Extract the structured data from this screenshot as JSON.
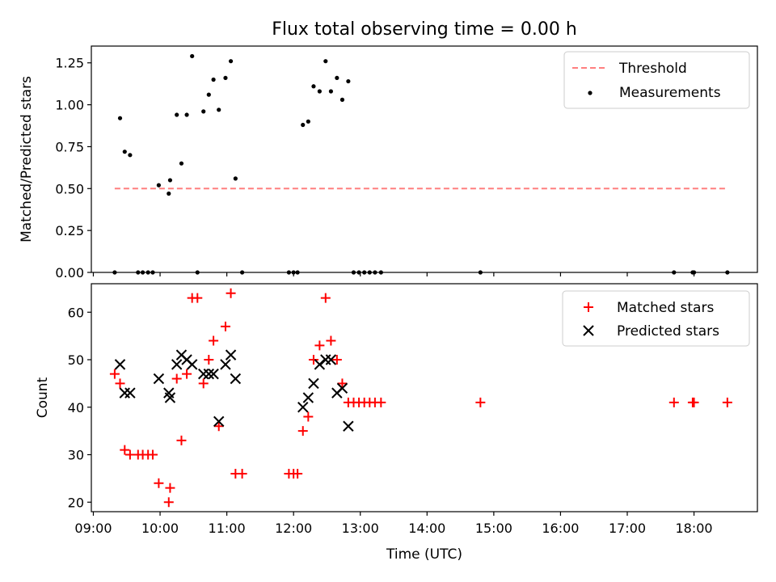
{
  "figure": {
    "title": "Flux total observing time = 0.00 h",
    "xlabel": "Time (UTC)",
    "x_ticks": [
      "09:00",
      "10:00",
      "11:00",
      "12:00",
      "13:00",
      "14:00",
      "15:00",
      "16:00",
      "17:00",
      "18:00"
    ]
  },
  "chart_data": [
    {
      "type": "scatter",
      "title": "Flux total observing time = 0.00 h",
      "ylabel": "Matched/Predicted stars",
      "xlim": [
        8.97,
        18.95
      ],
      "ylim": [
        0,
        1.35
      ],
      "y_ticks": [
        "0.00",
        "0.25",
        "0.50",
        "0.75",
        "1.00",
        "1.25"
      ],
      "grid": false,
      "legend_position": "top-right",
      "series": [
        {
          "name": "Threshold",
          "kind": "line",
          "style": "dashed",
          "color": "#ff7f7f",
          "x": [
            9.32,
            18.5
          ],
          "y": [
            0.5,
            0.5
          ]
        },
        {
          "name": "Measurements",
          "kind": "scatter",
          "marker": "dot",
          "color": "#000000",
          "x": [
            9.32,
            9.4,
            9.47,
            9.55,
            9.67,
            9.74,
            9.82,
            9.89,
            9.98,
            10.13,
            10.15,
            10.25,
            10.32,
            10.4,
            10.48,
            10.56,
            10.65,
            10.73,
            10.8,
            10.88,
            10.98,
            11.06,
            11.13,
            11.23,
            11.93,
            12.0,
            12.06,
            12.14,
            12.22,
            12.3,
            12.39,
            12.48,
            12.56,
            12.65,
            12.73,
            12.82,
            12.9,
            12.98,
            13.06,
            13.14,
            13.22,
            13.31,
            14.8,
            17.7,
            17.98,
            18.0,
            18.5
          ],
          "y": [
            0,
            0.92,
            0.72,
            0.7,
            0,
            0,
            0,
            0,
            0.52,
            0.47,
            0.55,
            0.94,
            0.65,
            0.94,
            1.29,
            0,
            0.96,
            1.06,
            1.15,
            0.97,
            1.16,
            1.26,
            0.56,
            0,
            0,
            0,
            0,
            0.88,
            0.9,
            1.11,
            1.08,
            1.26,
            1.08,
            1.16,
            1.03,
            1.14,
            0,
            0,
            0,
            0,
            0,
            0,
            0,
            0,
            0,
            0,
            0
          ]
        }
      ]
    },
    {
      "type": "scatter",
      "ylabel": "Count",
      "xlabel": "Time (UTC)",
      "xlim": [
        8.97,
        18.95
      ],
      "ylim": [
        18,
        66
      ],
      "y_ticks": [
        "20",
        "30",
        "40",
        "50",
        "60"
      ],
      "grid": false,
      "legend_position": "top-right",
      "series": [
        {
          "name": "Matched stars",
          "kind": "scatter",
          "marker": "plus",
          "color": "#ff0000",
          "x": [
            9.32,
            9.4,
            9.47,
            9.55,
            9.67,
            9.74,
            9.82,
            9.89,
            9.98,
            10.13,
            10.15,
            10.25,
            10.32,
            10.4,
            10.48,
            10.56,
            10.65,
            10.73,
            10.8,
            10.88,
            10.98,
            11.06,
            11.13,
            11.23,
            11.93,
            12.0,
            12.06,
            12.14,
            12.22,
            12.3,
            12.39,
            12.48,
            12.56,
            12.65,
            12.73,
            12.82,
            12.9,
            12.98,
            13.06,
            13.14,
            13.22,
            13.31,
            14.8,
            17.7,
            17.98,
            18.0,
            18.5
          ],
          "y": [
            47,
            45,
            31,
            30,
            30,
            30,
            30,
            30,
            24,
            20,
            23,
            46,
            33,
            47,
            63,
            63,
            45,
            50,
            54,
            36,
            57,
            64,
            26,
            26,
            26,
            26,
            26,
            35,
            38,
            50,
            53,
            63,
            54,
            50,
            45,
            41,
            41,
            41,
            41,
            41,
            41,
            41,
            41,
            41,
            41,
            41,
            41
          ]
        },
        {
          "name": "Predicted stars",
          "kind": "scatter",
          "marker": "x",
          "color": "#000000",
          "x": [
            9.4,
            9.47,
            9.55,
            9.98,
            10.13,
            10.15,
            10.25,
            10.32,
            10.4,
            10.48,
            10.65,
            10.73,
            10.8,
            10.88,
            10.98,
            11.06,
            11.13,
            12.14,
            12.22,
            12.3,
            12.39,
            12.48,
            12.56,
            12.65,
            12.73,
            12.82
          ],
          "y": [
            49,
            43,
            43,
            46,
            43,
            42,
            49,
            51,
            50,
            49,
            47,
            47,
            47,
            37,
            49,
            51,
            46,
            40,
            42,
            45,
            49,
            50,
            50,
            43,
            44,
            36
          ]
        }
      ]
    }
  ]
}
